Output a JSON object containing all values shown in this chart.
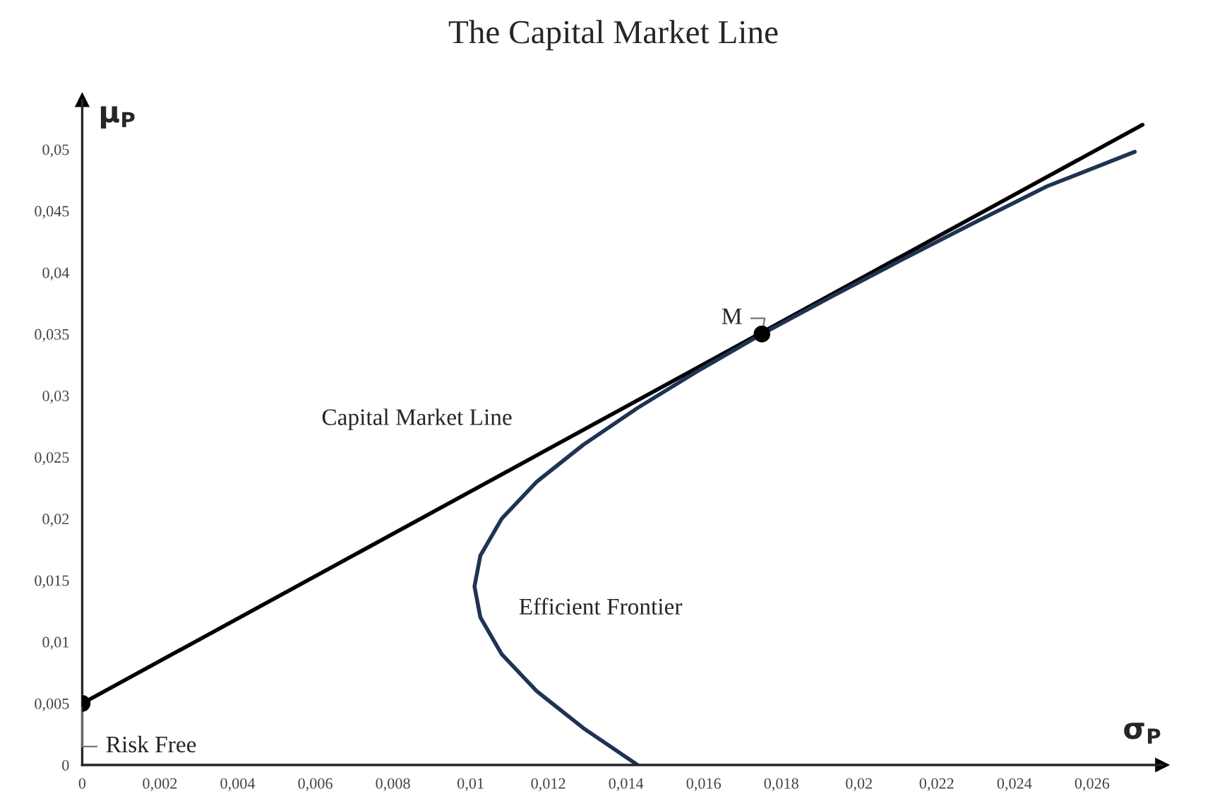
{
  "chart_data": {
    "type": "line",
    "title": "The Capital Market Line",
    "xlabel": "σ$_{P}$",
    "ylabel": "μ$_{P}$",
    "xlim": [
      0,
      0.0278
    ],
    "ylim": [
      0,
      0.054
    ],
    "xticks": [
      {
        "value": 0,
        "label": "0"
      },
      {
        "value": 0.002,
        "label": "0,002"
      },
      {
        "value": 0.004,
        "label": "0,004"
      },
      {
        "value": 0.006,
        "label": "0,006"
      },
      {
        "value": 0.008,
        "label": "0,008"
      },
      {
        "value": 0.01,
        "label": "0,01"
      },
      {
        "value": 0.012,
        "label": "0,012"
      },
      {
        "value": 0.014,
        "label": "0,014"
      },
      {
        "value": 0.016,
        "label": "0,016"
      },
      {
        "value": 0.018,
        "label": "0,018"
      },
      {
        "value": 0.02,
        "label": "0,02"
      },
      {
        "value": 0.022,
        "label": "0,022"
      },
      {
        "value": 0.024,
        "label": "0,024"
      },
      {
        "value": 0.026,
        "label": "0,026"
      }
    ],
    "yticks": [
      {
        "value": 0,
        "label": "0"
      },
      {
        "value": 0.005,
        "label": "0,005"
      },
      {
        "value": 0.01,
        "label": "0,01"
      },
      {
        "value": 0.015,
        "label": "0,015"
      },
      {
        "value": 0.02,
        "label": "0,02"
      },
      {
        "value": 0.025,
        "label": "0,025"
      },
      {
        "value": 0.03,
        "label": "0,03"
      },
      {
        "value": 0.035,
        "label": "0,035"
      },
      {
        "value": 0.04,
        "label": "0,04"
      },
      {
        "value": 0.045,
        "label": "0,045"
      },
      {
        "value": 0.05,
        "label": "0,05"
      }
    ],
    "grid": false,
    "legend": false,
    "line_style": "solid",
    "series": [
      {
        "color": "#000000",
        "x": [
          0,
          0.0273
        ],
        "values": [
          0.005,
          0.052
        ]
      },
      {
        "color": "#1f3354",
        "x": [
          0.0143,
          0.0129,
          0.0117,
          0.0108,
          0.01025,
          0.0101,
          0.01025,
          0.0108,
          0.0117,
          0.0129,
          0.0143,
          0.01585,
          0.0175,
          0.01927,
          0.02108,
          0.02294,
          0.02484,
          0.0271
        ],
        "values": [
          0,
          0.003,
          0.006,
          0.009,
          0.012,
          0.0145,
          0.017,
          0.02,
          0.023,
          0.026,
          0.029,
          0.032,
          0.035,
          0.038,
          0.041,
          0.044,
          0.047,
          0.0498
        ]
      },
      {
        "type": "scatter",
        "color": "#000000",
        "marker": "circle",
        "x": [
          0,
          0.0175
        ],
        "values": [
          0.005,
          0.035
        ]
      }
    ],
    "annotations": [
      {
        "text": "Risk Free",
        "x": 0,
        "y": 0.005
      },
      {
        "text": "M",
        "x": 0.0175,
        "y": 0.035
      },
      "Capital Market Line",
      "Efficient Frontier"
    ]
  }
}
